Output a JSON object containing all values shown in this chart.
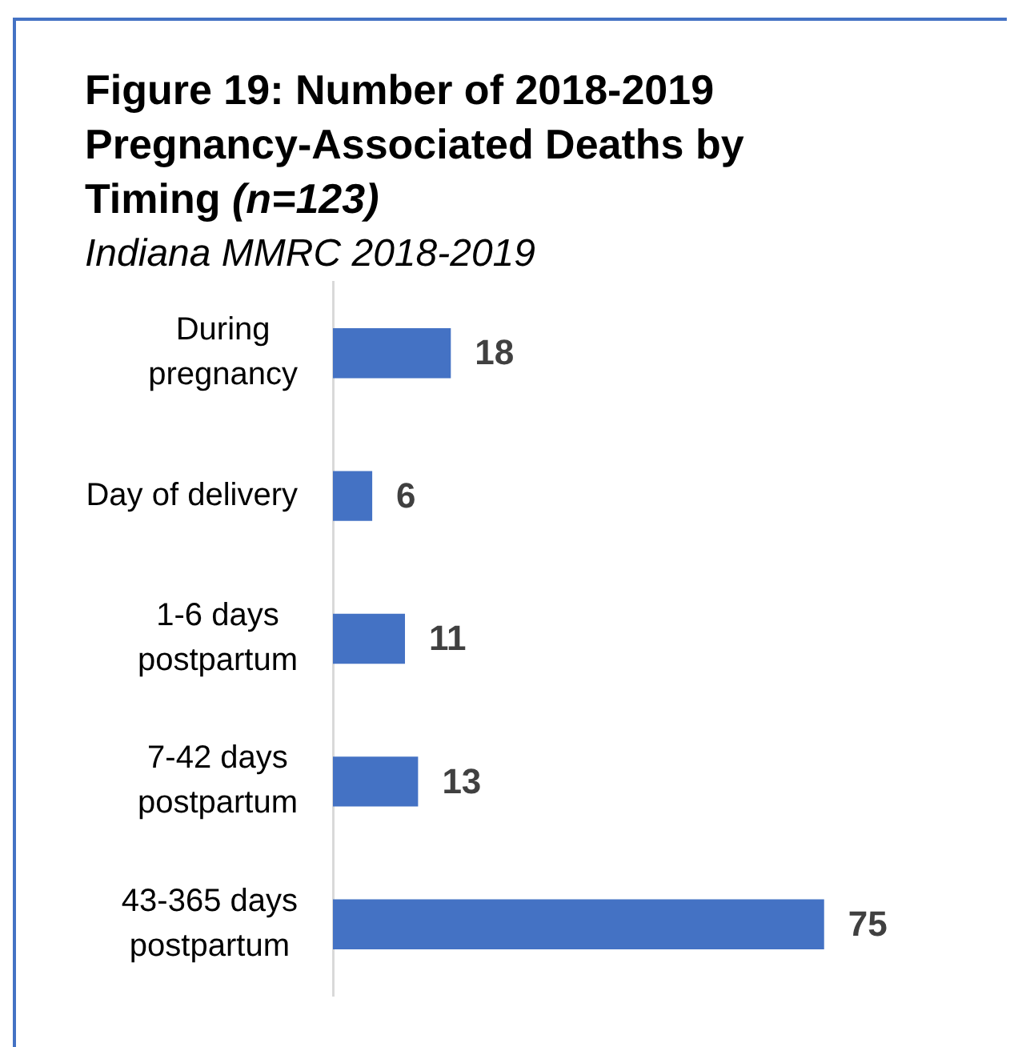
{
  "chart_data": {
    "type": "bar",
    "orientation": "horizontal",
    "title": "Figure 19: Number of 2018-2019 Pregnancy-Associated Deaths by Timing (n=123)",
    "subtitle": "Indiana MMRC 2018-2019",
    "categories": [
      "During pregnancy",
      "Day of delivery",
      "1-6 days postpartum",
      "7-42 days postpartum",
      "43-365 days postpartum"
    ],
    "values": [
      18,
      6,
      11,
      13,
      75
    ],
    "color": "#4472c4",
    "data_labels": true,
    "tick_labels": "y"
  }
}
